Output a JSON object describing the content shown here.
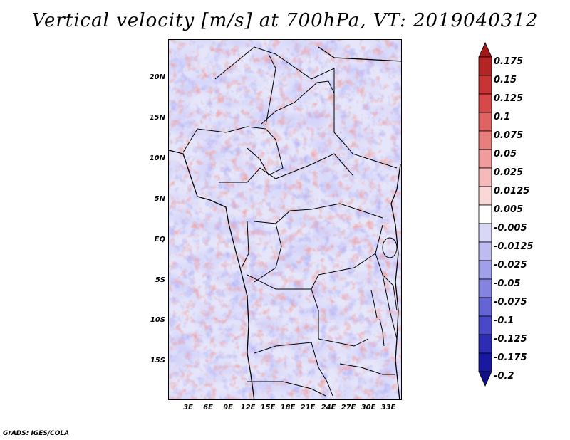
{
  "title": "Vertical velocity [m/s] at 700hPa, VT: 2019040312",
  "footer": "GrADS: IGES/COLA",
  "latitude_labels": [
    "20N",
    "15N",
    "10N",
    "5N",
    "EQ",
    "5S",
    "10S",
    "15S"
  ],
  "longitude_labels": [
    "3E",
    "6E",
    "9E",
    "12E",
    "15E",
    "18E",
    "21E",
    "24E",
    "27E",
    "30E",
    "33E"
  ],
  "colorbar": {
    "labels": [
      "0.175",
      "0.15",
      "0.125",
      "0.1",
      "0.075",
      "0.05",
      "0.025",
      "0.0125",
      "0.005",
      "-0.005",
      "-0.0125",
      "-0.025",
      "-0.05",
      "-0.075",
      "-0.1",
      "-0.125",
      "-0.175",
      "-0.2"
    ],
    "colors": [
      "#a01818",
      "#b42424",
      "#c83434",
      "#d84848",
      "#e06262",
      "#e87e7e",
      "#f09c9c",
      "#f6baba",
      "#fad8d8",
      "#ffffff",
      "#d8d8f6",
      "#bcbcf0",
      "#a0a0ea",
      "#8484e0",
      "#6464d6",
      "#4848c8",
      "#2c2cb4",
      "#1818a0",
      "#101088"
    ]
  },
  "chart_data": {
    "type": "heatmap",
    "title": "Vertical velocity [m/s] at 700hPa, VT: 2019040312",
    "variable": "Vertical velocity",
    "units": "m/s",
    "level": "700hPa",
    "valid_time": "2019040312",
    "lon_range": [
      0,
      35
    ],
    "lat_range": [
      -19.5,
      24.5
    ],
    "contour_levels": [
      -0.2,
      -0.175,
      -0.125,
      -0.1,
      -0.075,
      -0.05,
      -0.025,
      -0.0125,
      -0.005,
      0.005,
      0.0125,
      0.025,
      0.05,
      0.075,
      0.1,
      0.125,
      0.15,
      0.175
    ]
  }
}
